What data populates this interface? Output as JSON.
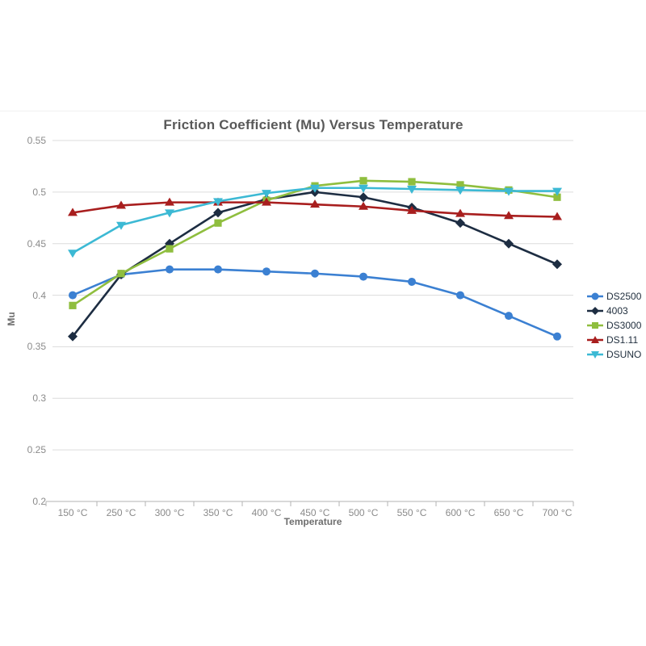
{
  "chart": {
    "top_border_visible": true
  },
  "chart_data": {
    "type": "line",
    "title": "Friction Coefficient (Mu) Versus Temperature",
    "xlabel": "Temperature",
    "ylabel": "Mu",
    "ylim": [
      0.2,
      0.55
    ],
    "y_ticks": [
      0.55,
      0.5,
      0.45,
      0.4,
      0.35,
      0.3,
      0.25,
      0.2
    ],
    "grid": true,
    "legend_position": "right",
    "categories": [
      "150 °C",
      "250 °C",
      "300 °C",
      "350 °C",
      "400 °C",
      "450 °C",
      "500 °C",
      "550 °C",
      "600 °C",
      "650 °C",
      "700 °C"
    ],
    "series": [
      {
        "name": "DS2500",
        "color": "#3b80d2",
        "marker": "circle",
        "values": [
          0.4,
          0.42,
          0.425,
          0.425,
          0.423,
          0.421,
          0.418,
          0.413,
          0.4,
          0.38,
          0.36
        ]
      },
      {
        "name": "4003",
        "color": "#1d2d42",
        "marker": "diamond",
        "values": [
          0.36,
          0.42,
          0.45,
          0.48,
          0.493,
          0.5,
          0.495,
          0.485,
          0.47,
          0.45,
          0.43
        ]
      },
      {
        "name": "DS3000",
        "color": "#8fbe3e",
        "marker": "square",
        "values": [
          0.39,
          0.421,
          0.445,
          0.47,
          0.492,
          0.506,
          0.511,
          0.51,
          0.507,
          0.502,
          0.495
        ]
      },
      {
        "name": "DS1.11",
        "color": "#a81e1e",
        "marker": "triangle-up",
        "values": [
          0.48,
          0.487,
          0.49,
          0.49,
          0.49,
          0.488,
          0.486,
          0.482,
          0.479,
          0.477,
          0.476
        ]
      },
      {
        "name": "DSUNO",
        "color": "#3cb9d4",
        "marker": "triangle-down",
        "values": [
          0.441,
          0.468,
          0.48,
          0.491,
          0.499,
          0.504,
          0.504,
          0.503,
          0.502,
          0.501,
          0.501
        ]
      }
    ],
    "style": {
      "grid_color": "#dcdcdc",
      "axis_color": "#b3b3b3",
      "tick_label_color": "#8b8b8b",
      "title_color": "#595959"
    }
  }
}
